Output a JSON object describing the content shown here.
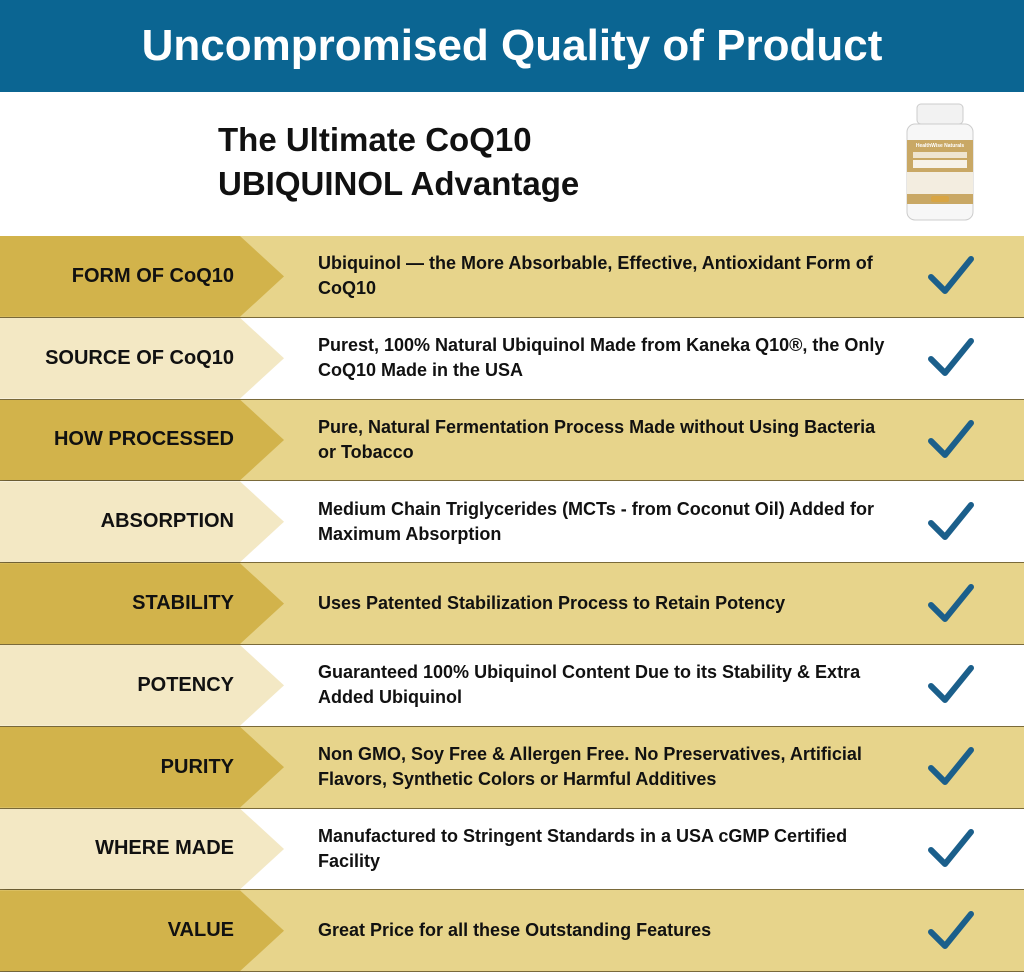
{
  "banner": {
    "title": "Uncompromised Quality of Product"
  },
  "subtitle": {
    "line1": "The Ultimate CoQ10",
    "line2": "UBIQUINOL Advantage"
  },
  "product_image": {
    "brand": "HealthWise Naturals",
    "name": "Ultimate CoQ10 UBIQUINOL"
  },
  "colors": {
    "banner": "#0b6592",
    "gold": "#d2b34b",
    "light_gold": "#e7d48b",
    "cream": "#f3e8c4",
    "check": "#1b5f8b"
  },
  "rows": [
    {
      "label": "FORM OF CoQ10",
      "text": "Ubiquinol — the More Absorbable, Effective, Antioxidant Form of CoQ10",
      "icon": "check-icon"
    },
    {
      "label": "SOURCE OF CoQ10",
      "text": "Purest, 100% Natural Ubiquinol Made from Kaneka Q10®, the Only CoQ10 Made in the USA",
      "icon": "check-icon"
    },
    {
      "label": "HOW PROCESSED",
      "text": "Pure, Natural Fermentation Process Made without Using Bacteria or Tobacco",
      "icon": "check-icon"
    },
    {
      "label": "ABSORPTION",
      "text": "Medium Chain Triglycerides (MCTs - from Coconut Oil) Added for Maximum Absorption",
      "icon": "check-icon"
    },
    {
      "label": "STABILITY",
      "text": "Uses Patented Stabilization Process to Retain Potency",
      "icon": "check-icon"
    },
    {
      "label": "POTENCY",
      "text": "Guaranteed 100% Ubiquinol Content Due to its Stability & Extra Added Ubiquinol",
      "icon": "check-icon"
    },
    {
      "label": "PURITY",
      "text": "Non GMO, Soy Free & Allergen Free. No Preservatives, Artificial Flavors, Synthetic Colors or Harmful Additives",
      "icon": "check-icon"
    },
    {
      "label": "WHERE MADE",
      "text": "Manufactured to Stringent Standards in a USA cGMP Certified Facility",
      "icon": "check-icon"
    },
    {
      "label": "VALUE",
      "text": "Great Price for all these Outstanding Features",
      "icon": "check-icon"
    }
  ]
}
